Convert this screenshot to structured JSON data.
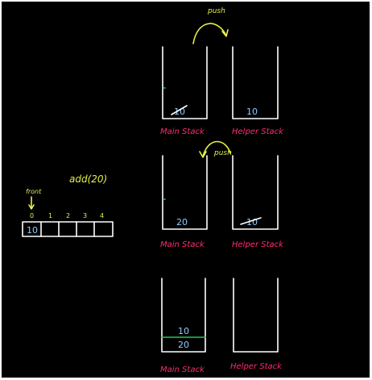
{
  "operation": "add(20)",
  "queue": {
    "front_label": "front",
    "indices": [
      "0",
      "1",
      "2",
      "3",
      "4"
    ],
    "cells": [
      "10",
      "",
      "",
      "",
      ""
    ]
  },
  "steps": [
    {
      "arrow_label": "push",
      "main": {
        "label": "Main Stack",
        "values": [
          "10"
        ],
        "crossed": true
      },
      "helper": {
        "label": "Helper Stack",
        "values": [
          "10"
        ],
        "crossed": false
      }
    },
    {
      "arrow_label": "push",
      "main": {
        "label": "Main Stack",
        "values": [
          "20"
        ],
        "crossed": false
      },
      "helper": {
        "label": "Helper Stack",
        "values": [
          "10"
        ],
        "crossed": true
      }
    },
    {
      "main": {
        "label": "Main Stack",
        "values": [
          "10",
          "20"
        ]
      },
      "helper": {
        "label": "Helper Stack",
        "values": []
      }
    }
  ],
  "colors": {
    "background": "#000000",
    "chalk": "#ffffff",
    "labels": "#ff2d6f",
    "values": "#8ecbff",
    "annotations": "#e6f04a",
    "divider": "#22c55e"
  }
}
